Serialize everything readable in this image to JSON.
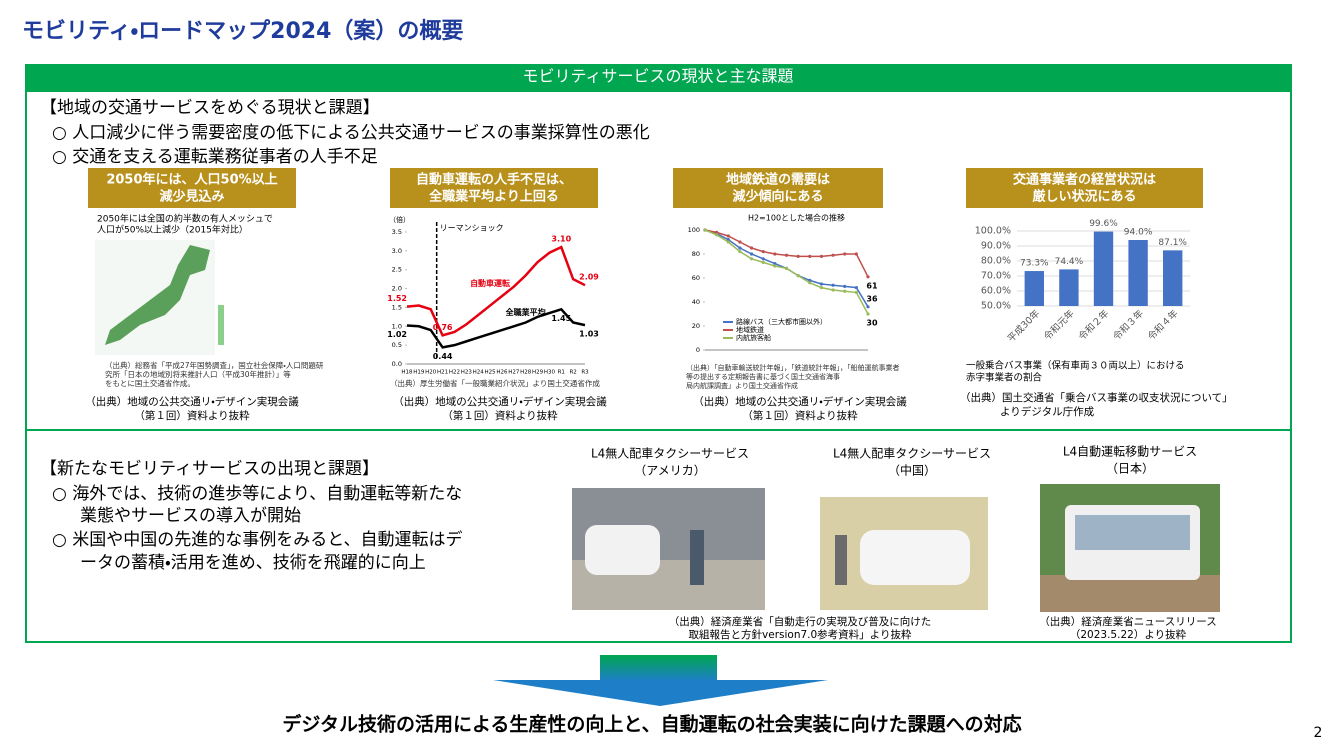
{
  "header": {
    "title": "モビリティ・ロードマップ2024（案）の概要"
  },
  "banner": "モビリティサービスの現状と主な課題",
  "section1": {
    "heading": "【地域の交通サービスをめぐる現状と課題】",
    "bullets": [
      "○ 人口減少に伴う需要密度の低下による公共交通サービスの事業採算性の悪化",
      "○ 交通を支える運転業務従事者の人手不足"
    ]
  },
  "panels": [
    {
      "title": [
        "2050年には、人口50%以上",
        "減少見込み"
      ],
      "note": [
        "2050年には全国の約半数の有人メッシュで",
        "人口が50%以上減少（2015年対比）"
      ],
      "small_source": [
        "（出典）総務省「平成27年国勢調査」，国立社会保障・人口問題研",
        "究所「日本の地域別将来推計人口（平成30年推計）」等",
        "をもとに国土交通省作成。"
      ],
      "source": [
        "（出典）地域の公共交通リ・デザイン実現会議",
        "（第１回）資料より抜粋"
      ]
    },
    {
      "title": [
        "自動車運転の人手不足は、",
        "全職業平均より上回る"
      ],
      "chart": {
        "type": "line",
        "y_unit": "（倍）",
        "annotation": "リーマンショック",
        "legend": "inline",
        "categories": [
          "H18",
          "H19",
          "H20",
          "H21",
          "H22",
          "H23",
          "H24",
          "H25",
          "H26",
          "H27",
          "H28",
          "H29",
          "H30",
          "R1",
          "R2",
          "R3"
        ],
        "ylim": [
          0,
          3.5
        ],
        "yticks": [
          {
            "value": 0,
            "label": "0.0"
          },
          {
            "value": 0.5,
            "label": "0.5"
          },
          {
            "value": 1,
            "label": "1.0"
          },
          {
            "value": 1.5,
            "label": "1.5"
          },
          {
            "value": 2,
            "label": "2.0"
          },
          {
            "value": 2.5,
            "label": "2.5"
          },
          {
            "value": 3,
            "label": "3.0"
          },
          {
            "value": 3.5,
            "label": "3.5"
          }
        ],
        "grid": false,
        "series": [
          {
            "name": "自動車運転",
            "color": "#e60012",
            "values": [
              1.52,
              1.55,
              1.45,
              0.76,
              0.85,
              1.05,
              1.3,
              1.55,
              1.8,
              2.05,
              2.35,
              2.7,
              2.95,
              3.1,
              2.25,
              2.09
            ],
            "value_labels": [
              "1.52",
              null,
              null,
              "0.76",
              null,
              null,
              null,
              null,
              null,
              null,
              null,
              null,
              null,
              "3.10",
              null,
              "2.09"
            ]
          },
          {
            "name": "全職業平均",
            "color": "#000000",
            "values": [
              1.02,
              1.0,
              0.9,
              0.44,
              0.5,
              0.6,
              0.7,
              0.8,
              0.9,
              1.0,
              1.1,
              1.25,
              1.35,
              1.45,
              1.1,
              1.03
            ],
            "value_labels": [
              "1.02",
              null,
              null,
              "0.44",
              null,
              null,
              null,
              null,
              null,
              null,
              null,
              null,
              null,
              "1.45",
              null,
              "1.03"
            ]
          }
        ]
      },
      "small_source": [
        "（出典）厚生労働省「一般職業紹介状況」より国土交通省作成"
      ],
      "source": [
        "（出典）地域の公共交通リ・デザイン実現会議",
        "（第１回）資料より抜粋"
      ]
    },
    {
      "title": [
        "地域鉄道の需要は",
        "減少傾向にある"
      ],
      "chart": {
        "type": "line",
        "subtitle": "H2=100とした場合の推移",
        "legend": "lower left",
        "ylim": [
          0,
          100
        ],
        "yticks": [
          0,
          20,
          40,
          60,
          80,
          100
        ],
        "grid": false,
        "series": [
          {
            "name": "路線バス（三大都市圏以外）",
            "color": "#4472c4",
            "values": [
              100,
              97,
              92,
              85,
              80,
              76,
              72,
              68,
              62,
              58,
              55,
              54,
              53,
              52,
              36
            ],
            "value_labels": [
              null,
              null,
              null,
              null,
              null,
              null,
              null,
              null,
              null,
              null,
              null,
              null,
              null,
              null,
              "36"
            ]
          },
          {
            "name": "地域鉄道",
            "color": "#c0504d",
            "values": [
              100,
              98,
              95,
              90,
              85,
              82,
              80,
              79,
              78,
              78,
              78,
              79,
              80,
              80,
              61
            ],
            "value_labels": [
              null,
              null,
              null,
              null,
              null,
              null,
              null,
              null,
              null,
              null,
              null,
              null,
              null,
              null,
              "61"
            ]
          },
          {
            "name": "内航旅客船",
            "color": "#9bbb59",
            "values": [
              100,
              96,
              90,
              82,
              76,
              73,
              70,
              68,
              62,
              56,
              52,
              50,
              49,
              48,
              30
            ],
            "value_labels": [
              null,
              null,
              null,
              null,
              null,
              null,
              null,
              null,
              null,
              null,
              null,
              null,
              null,
              null,
              "30"
            ]
          }
        ]
      },
      "small_source": [
        "（出典）「自動車輸送統計年報」，「鉄道統計年報」，「船舶運航事業者",
        "等の提出する定期報告書に基づく国土交通省海事",
        "局内航課調査」より国土交通省作成"
      ],
      "source": [
        "（出典）地域の公共交通リ・デザイン実現会議",
        "（第１回）資料より抜粋"
      ]
    },
    {
      "title": [
        "交通事業者の経営状況は",
        "厳しい状況にある"
      ],
      "chart": {
        "type": "bar",
        "color": "#4472c4",
        "categories": [
          "平成30年",
          "令和元年",
          "令和２年",
          "令和３年",
          "令和４年"
        ],
        "values": [
          73.3,
          74.4,
          99.6,
          94.0,
          87.1
        ],
        "value_labels": [
          "73.3%",
          "74.4%",
          "99.6%",
          "94.0%",
          "87.1%"
        ],
        "ylim": [
          50,
          100
        ],
        "yticks": [
          {
            "value": 50,
            "label": "50.0%"
          },
          {
            "value": 60,
            "label": "60.0%"
          },
          {
            "value": 70,
            "label": "70.0%"
          },
          {
            "value": 80,
            "label": "80.0%"
          },
          {
            "value": 90,
            "label": "90.0%"
          },
          {
            "value": 100,
            "label": "100.0%"
          }
        ],
        "grid": true
      },
      "note": [
        "一般乗合バス事業（保有車両３０両以上）における",
        "赤字事業者の割合"
      ],
      "source": [
        "（出典）国土交通省「乗合バス事業の収支状況について」",
        "よりデジタル庁作成"
      ]
    }
  ],
  "section2": {
    "heading": "【新たなモビリティサービスの出現と課題】",
    "bullets": [
      [
        "○ 海外では、技術の進歩等により、自動運転等新たな",
        "業態やサービスの導入が開始"
      ],
      [
        "○ 米国や中国の先進的な事例をみると、自動運転はデ",
        "ータの蓄積・活用を進め、技術を飛躍的に向上"
      ]
    ],
    "photos": [
      {
        "caption": [
          "L4無人配車タクシーサービス",
          "（アメリカ）"
        ]
      },
      {
        "caption": [
          "L4無人配車タクシーサービス",
          "（中国）"
        ]
      },
      {
        "caption": [
          "L4自動運転移動サービス",
          "（日本）"
        ]
      }
    ],
    "sources": [
      [
        "（出典）経済産業省「自動走行の実現及び普及に向けた",
        "取組報告と方針version7.0参考資料」より抜粋"
      ],
      [
        "（出典）経済産業省ニュースリリース",
        "（2023.5.22）より抜粋"
      ]
    ]
  },
  "conclusion": "デジタル技術の活用による生産性の向上と、自動運転の社会実装に向けた課題への対応",
  "page_number": "2"
}
